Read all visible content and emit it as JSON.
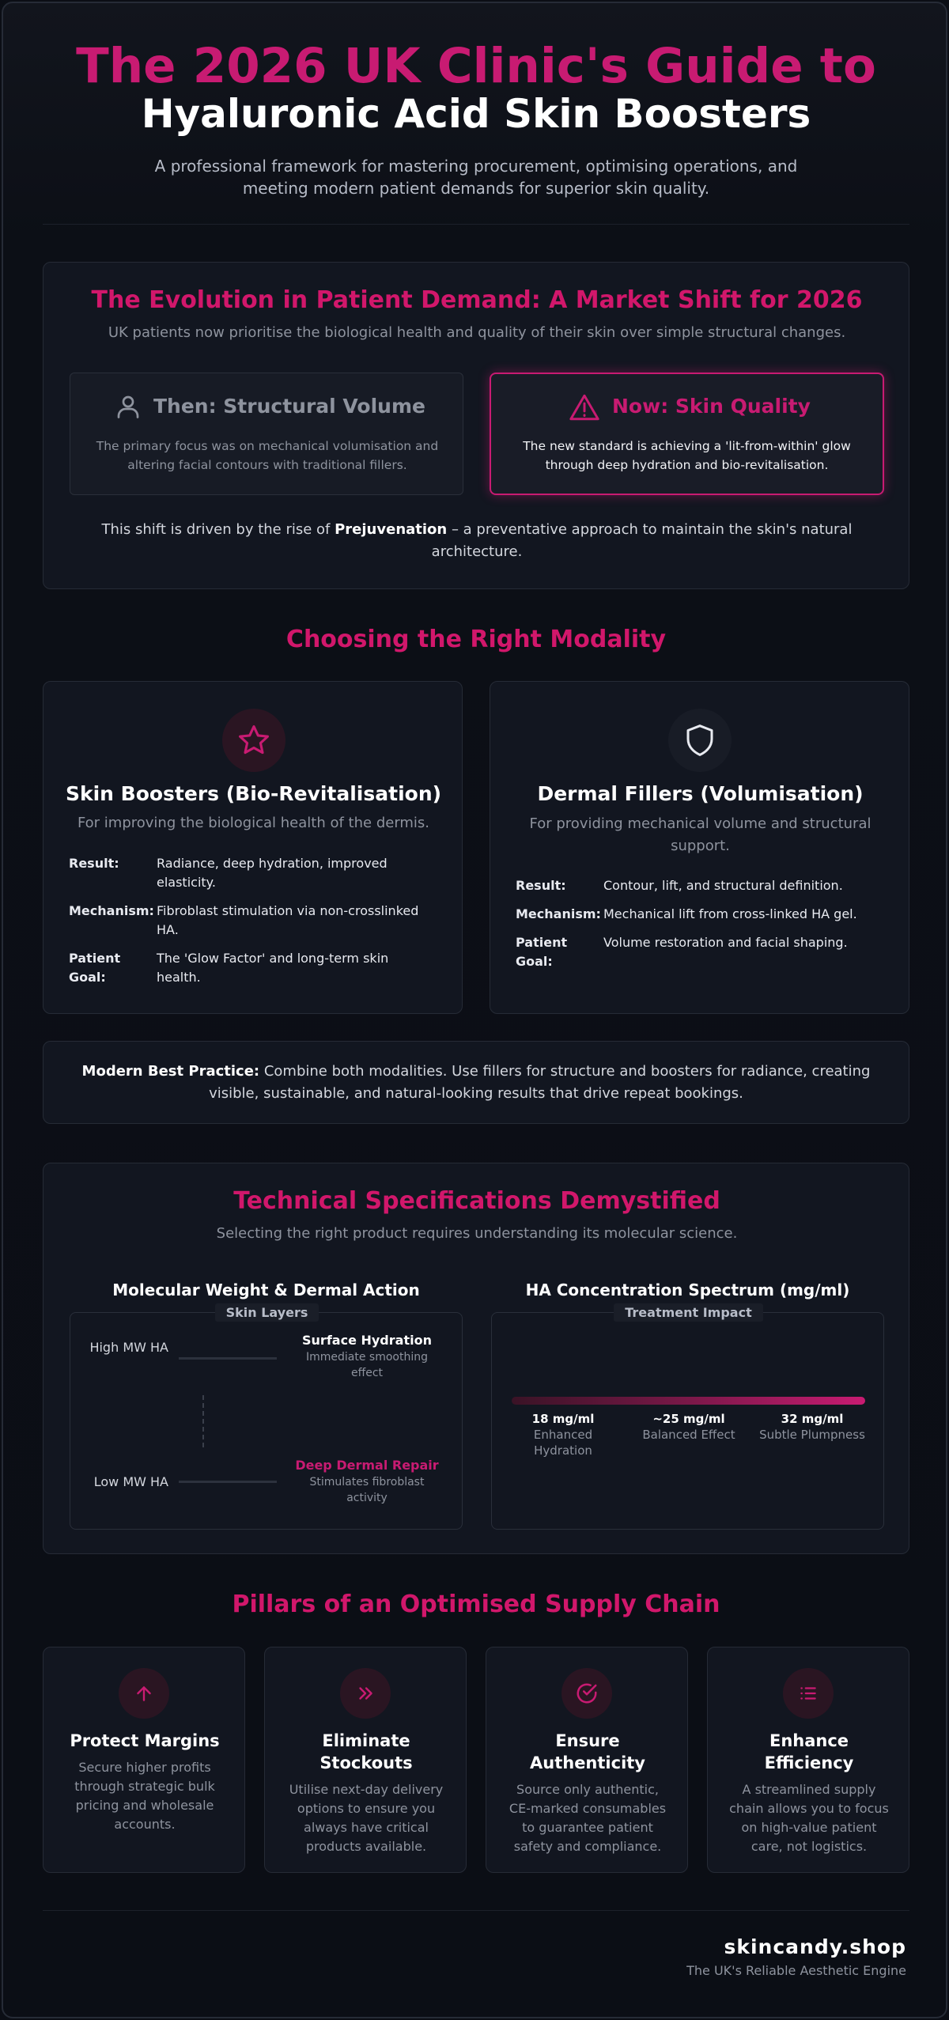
{
  "header": {
    "title_line1": "The 2026 UK Clinic's Guide to",
    "title_line2": "Hyaluronic Acid Skin Boosters",
    "lead": "A professional framework for mastering procurement, optimising operations, and meeting modern patient demands for superior skin quality."
  },
  "evolution": {
    "title": "The Evolution in Patient Demand: A Market Shift for 2026",
    "subtitle": "UK patients now prioritise the biological health and quality of their skin over simple structural changes.",
    "then": {
      "icon": "user-icon",
      "title": "Then: Structural Volume",
      "body": "The primary focus was on mechanical volumisation and altering facial contours with traditional fillers."
    },
    "now": {
      "icon": "warning-triangle-icon",
      "title": "Now: Skin Quality",
      "body": "The new standard is achieving a 'lit-from-within' glow through deep hydration and bio-revitalisation."
    },
    "note_before": "This shift is driven by the rise of ",
    "note_bold": "Prejuvenation",
    "note_after": " – a preventative approach to maintain the skin's natural architecture."
  },
  "modality": {
    "title": "Choosing the Right Modality",
    "boosters": {
      "icon": "star-icon",
      "title": "Skin Boosters (Bio-Revitalisation)",
      "subtitle": "For improving the biological health of the dermis.",
      "rows": [
        {
          "k": "Result:",
          "v": "Radiance, deep hydration, improved elasticity."
        },
        {
          "k": "Mechanism:",
          "v": "Fibroblast stimulation via non-crosslinked HA."
        },
        {
          "k": "Patient Goal:",
          "v": "The 'Glow Factor' and long-term skin health."
        }
      ]
    },
    "fillers": {
      "icon": "shield-icon",
      "title": "Dermal Fillers (Volumisation)",
      "subtitle": "For providing mechanical volume and structural support.",
      "rows": [
        {
          "k": "Result:",
          "v": "Contour, lift, and structural definition."
        },
        {
          "k": "Mechanism:",
          "v": "Mechanical lift from cross-linked HA gel."
        },
        {
          "k": "Patient Goal:",
          "v": "Volume restoration and facial shaping."
        }
      ]
    },
    "best_practice_bold": "Modern Best Practice:",
    "best_practice_text": " Combine both modalities. Use fillers for structure and boosters for radiance, creating visible, sustainable, and natural-looking results that drive repeat bookings."
  },
  "specs": {
    "title": "Technical Specifications Demystified",
    "subtitle": "Selecting the right product requires understanding its molecular science.",
    "mw": {
      "title": "Molecular Weight & Dermal Action",
      "tag": "Skin Layers",
      "high_label": "High MW HA",
      "high_title": "Surface Hydration",
      "high_sub": "Immediate smoothing effect",
      "low_label": "Low MW HA",
      "low_title": "Deep Dermal Repair",
      "low_sub": "Stimulates fibroblast activity"
    },
    "conc": {
      "title": "HA Concentration Spectrum (mg/ml)",
      "tag": "Treatment Impact",
      "points": [
        {
          "value": "18 mg/ml",
          "label": "Enhanced Hydration"
        },
        {
          "value": "~25 mg/ml",
          "label": "Balanced Effect"
        },
        {
          "value": "32 mg/ml",
          "label": "Subtle Plumpness"
        }
      ]
    }
  },
  "pillars": {
    "title": "Pillars of an Optimised Supply Chain",
    "items": [
      {
        "icon": "arrow-up-icon",
        "title": "Protect Margins",
        "body": "Secure higher profits through strategic bulk pricing and wholesale accounts."
      },
      {
        "icon": "double-chevron-right-icon",
        "title": "Eliminate Stockouts",
        "body": "Utilise next-day delivery options to ensure you always have critical products available."
      },
      {
        "icon": "check-circle-icon",
        "title": "Ensure Authenticity",
        "body": "Source only authentic, CE-marked consumables to guarantee patient safety and compliance."
      },
      {
        "icon": "list-icon",
        "title": "Enhance Efficiency",
        "body": "A streamlined supply chain allows you to focus on high-value patient care, not logistics."
      }
    ]
  },
  "footer": {
    "brand": "skincandy.shop",
    "tagline": "The UK's Reliable Aesthetic Engine"
  },
  "colors": {
    "accent": "#c81b72",
    "accent_alt": "#d1176b",
    "background": "#0b0e15",
    "panel": "#121620"
  }
}
